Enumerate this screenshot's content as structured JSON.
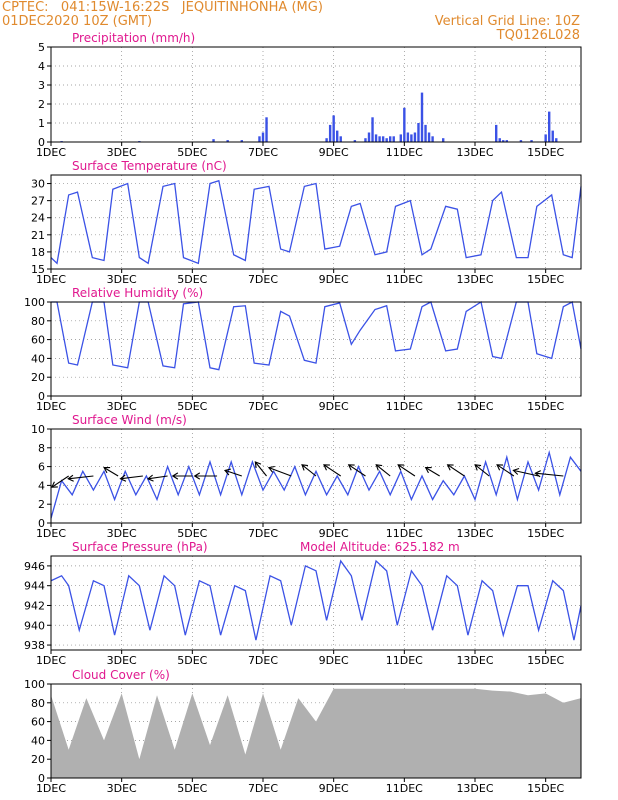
{
  "header": {
    "line1_left": "CPTEC:   041:15W-16:22S   JEQUITINHONHA (MG)",
    "line2_left": "01DEC2020 10Z (GMT)",
    "line2_right": "Vertical Grid Line: 10Z",
    "line3_right": "TQ0126L028"
  },
  "colors": {
    "header": "#e08a2e",
    "title": "#e0188f",
    "line": "#3b52e6",
    "cloud": "#b0b0b0",
    "wind_vector": "#000000"
  },
  "x_axis": {
    "tick_labels": [
      "1DEC",
      "3DEC",
      "5DEC",
      "7DEC",
      "9DEC",
      "11DEC",
      "13DEC",
      "15DEC"
    ],
    "tick_days": [
      0,
      2,
      4,
      6,
      8,
      10,
      12,
      14
    ],
    "range_days": [
      0,
      15
    ]
  },
  "chart_data": [
    {
      "type": "bar",
      "title": "Precipitation (mm/h)",
      "ylim": [
        0,
        5
      ],
      "yticks": [
        "0",
        "1",
        "2",
        "3",
        "4",
        "5"
      ],
      "x_days": [
        0.3,
        2.5,
        4.6,
        5.0,
        5.4,
        5.9,
        6.0,
        6.1,
        7.8,
        7.9,
        8.0,
        8.1,
        8.2,
        8.6,
        8.9,
        9.0,
        9.1,
        9.2,
        9.3,
        9.4,
        9.5,
        9.6,
        9.7,
        9.9,
        10.0,
        10.1,
        10.2,
        10.3,
        10.4,
        10.5,
        10.6,
        10.7,
        10.8,
        11.1,
        12.6,
        12.7,
        12.8,
        12.9,
        13.3,
        13.6,
        14.0,
        14.1,
        14.2,
        14.3
      ],
      "values": [
        0.05,
        0.05,
        0.15,
        0.1,
        0.1,
        0.3,
        0.5,
        1.3,
        0.2,
        0.9,
        1.4,
        0.6,
        0.3,
        0.1,
        0.2,
        0.5,
        1.3,
        0.4,
        0.3,
        0.3,
        0.2,
        0.3,
        0.3,
        0.4,
        1.8,
        0.5,
        0.4,
        0.5,
        1.0,
        2.6,
        0.9,
        0.5,
        0.3,
        0.2,
        0.9,
        0.2,
        0.1,
        0.1,
        0.1,
        0.1,
        0.4,
        1.6,
        0.6,
        0.2
      ]
    },
    {
      "type": "line",
      "title": "Surface Temperature (nC)",
      "ylim": [
        15,
        31.5
      ],
      "yticks": [
        "15",
        "18",
        "21",
        "24",
        "27",
        "30"
      ],
      "x_days": [
        0,
        0.17,
        0.5,
        0.75,
        1.17,
        1.5,
        1.75,
        2.17,
        2.5,
        2.75,
        3.17,
        3.5,
        3.75,
        4.17,
        4.5,
        4.75,
        5.17,
        5.5,
        5.75,
        6.17,
        6.5,
        6.75,
        7.17,
        7.5,
        7.75,
        8.17,
        8.5,
        8.75,
        9.17,
        9.5,
        9.75,
        10.17,
        10.5,
        10.75,
        11.17,
        11.5,
        11.75,
        12.17,
        12.5,
        12.75,
        13.17,
        13.5,
        13.75,
        14.17,
        14.5,
        14.75,
        15
      ],
      "values": [
        17,
        16,
        28,
        28.5,
        17,
        16.5,
        29,
        30,
        17,
        16,
        29.5,
        30,
        17,
        16,
        30,
        30.5,
        17.5,
        16.5,
        29,
        29.5,
        18.5,
        18,
        29.5,
        30,
        18.5,
        19,
        26,
        26.5,
        17.5,
        18,
        26,
        27,
        17.5,
        18.5,
        26,
        25.5,
        17,
        17.5,
        27,
        28.5,
        17,
        17,
        26,
        28,
        17.5,
        17,
        29.5
      ]
    },
    {
      "type": "line",
      "title": "Relative Humidity (%)",
      "ylim": [
        0,
        100
      ],
      "yticks": [
        "0",
        "20",
        "40",
        "60",
        "80",
        "100"
      ],
      "x_days": [
        0,
        0.17,
        0.5,
        0.75,
        1.17,
        1.5,
        1.75,
        2.17,
        2.5,
        2.75,
        3.17,
        3.5,
        3.75,
        4.17,
        4.5,
        4.75,
        5.17,
        5.5,
        5.75,
        6.17,
        6.5,
        6.75,
        7.17,
        7.5,
        7.75,
        8.17,
        8.5,
        8.75,
        9.17,
        9.5,
        9.75,
        10.17,
        10.5,
        10.75,
        11.17,
        11.5,
        11.75,
        12.17,
        12.5,
        12.75,
        13.17,
        13.5,
        13.75,
        14.17,
        14.5,
        14.75,
        15
      ],
      "values": [
        100,
        100,
        35,
        33,
        100,
        100,
        33,
        30,
        100,
        100,
        32,
        30,
        98,
        100,
        30,
        28,
        95,
        96,
        35,
        33,
        90,
        85,
        38,
        35,
        95,
        99,
        55,
        70,
        92,
        96,
        48,
        50,
        95,
        100,
        48,
        50,
        90,
        100,
        42,
        40,
        100,
        100,
        45,
        40,
        95,
        100,
        50
      ]
    },
    {
      "type": "line",
      "title": "Surface Wind (m/s)",
      "ylim": [
        0,
        10
      ],
      "yticks": [
        "0",
        "2",
        "4",
        "6",
        "8",
        "10"
      ],
      "x_days": [
        0,
        0.3,
        0.6,
        0.9,
        1.2,
        1.5,
        1.8,
        2.1,
        2.4,
        2.7,
        3.0,
        3.3,
        3.6,
        3.9,
        4.2,
        4.5,
        4.8,
        5.1,
        5.4,
        5.7,
        6.0,
        6.3,
        6.6,
        6.9,
        7.2,
        7.5,
        7.8,
        8.1,
        8.4,
        8.7,
        9.0,
        9.3,
        9.6,
        9.9,
        10.2,
        10.5,
        10.8,
        11.1,
        11.4,
        11.7,
        12.0,
        12.3,
        12.6,
        12.9,
        13.2,
        13.5,
        13.8,
        14.1,
        14.4,
        14.7,
        15
      ],
      "values": [
        0.5,
        4.5,
        3,
        5.5,
        3.5,
        5.5,
        2.5,
        5.5,
        3,
        5,
        2.5,
        6,
        3,
        6,
        3,
        6.5,
        3,
        6.5,
        3,
        6.5,
        3.5,
        5.5,
        3.5,
        6,
        3,
        5.5,
        3,
        5,
        3,
        6,
        3.5,
        5.5,
        3,
        5.5,
        2.5,
        5,
        2.5,
        4.5,
        3,
        5,
        2.5,
        6.5,
        3,
        7,
        2.5,
        6.5,
        3.5,
        7.5,
        3,
        7,
        5.5
      ],
      "vector_x_days": [
        0.5,
        1.2,
        1.9,
        2.6,
        3.3,
        4.0,
        4.7,
        5.4,
        6.1,
        6.8,
        7.5,
        8.2,
        8.9,
        9.6,
        10.3,
        11.0,
        11.7,
        12.4,
        13.1,
        13.8,
        14.5
      ],
      "vector_u": [
        -0.6,
        -0.9,
        -0.5,
        -0.8,
        -0.7,
        -0.7,
        -0.8,
        -0.6,
        -0.4,
        -0.8,
        -0.5,
        -0.6,
        -0.6,
        -0.5,
        -0.6,
        -0.5,
        -0.6,
        -0.5,
        -0.6,
        -0.9,
        -1.0
      ],
      "vector_v": [
        -0.4,
        -0.1,
        0.3,
        -0.1,
        -0.1,
        0.0,
        0.0,
        0.2,
        0.5,
        0.3,
        0.4,
        0.4,
        0.4,
        0.4,
        0.4,
        0.3,
        0.4,
        0.4,
        0.4,
        0.2,
        0.1
      ]
    },
    {
      "type": "line",
      "title": "Surface Pressure (hPa)",
      "annotation": "Model Altitude: 625.182 m",
      "ylim": [
        937.5,
        947
      ],
      "yticks": [
        "938",
        "940",
        "942",
        "944",
        "946"
      ],
      "x_days": [
        0,
        0.3,
        0.5,
        0.8,
        1.2,
        1.5,
        1.8,
        2.2,
        2.5,
        2.8,
        3.2,
        3.5,
        3.8,
        4.2,
        4.5,
        4.8,
        5.2,
        5.5,
        5.8,
        6.2,
        6.5,
        6.8,
        7.2,
        7.5,
        7.8,
        8.2,
        8.5,
        8.8,
        9.2,
        9.5,
        9.8,
        10.2,
        10.5,
        10.8,
        11.2,
        11.5,
        11.8,
        12.2,
        12.5,
        12.8,
        13.2,
        13.5,
        13.8,
        14.2,
        14.5,
        14.8,
        15
      ],
      "values": [
        944.5,
        945,
        944,
        939.5,
        944.5,
        944,
        939,
        945,
        944,
        939.5,
        945,
        944,
        939,
        944.5,
        944,
        939,
        944,
        943.5,
        938.5,
        945,
        944.5,
        940,
        946,
        945.5,
        940.5,
        946.5,
        945,
        940.5,
        946.5,
        945.5,
        940,
        945.5,
        944,
        939.5,
        945,
        944,
        939,
        944.5,
        943.5,
        939,
        944,
        944,
        939.5,
        944.5,
        943.5,
        938.5,
        942
      ]
    },
    {
      "type": "area",
      "title": "Cloud Cover (%)",
      "ylim": [
        0,
        100
      ],
      "yticks": [
        "0",
        "20",
        "40",
        "60",
        "80",
        "100"
      ],
      "x_days": [
        0,
        0.5,
        1.0,
        1.5,
        2.0,
        2.5,
        3.0,
        3.5,
        4.0,
        4.5,
        5.0,
        5.5,
        6.0,
        6.5,
        7.0,
        7.5,
        8.0,
        8.5,
        9.0,
        9.5,
        10.0,
        10.5,
        11.0,
        11.5,
        12.0,
        12.5,
        13.0,
        13.5,
        14.0,
        14.5,
        15
      ],
      "values": [
        88,
        30,
        85,
        40,
        90,
        20,
        88,
        30,
        90,
        35,
        88,
        25,
        90,
        30,
        85,
        60,
        95,
        95,
        95,
        95,
        95,
        95,
        95,
        95,
        95,
        93,
        92,
        88,
        90,
        80,
        85
      ]
    }
  ]
}
